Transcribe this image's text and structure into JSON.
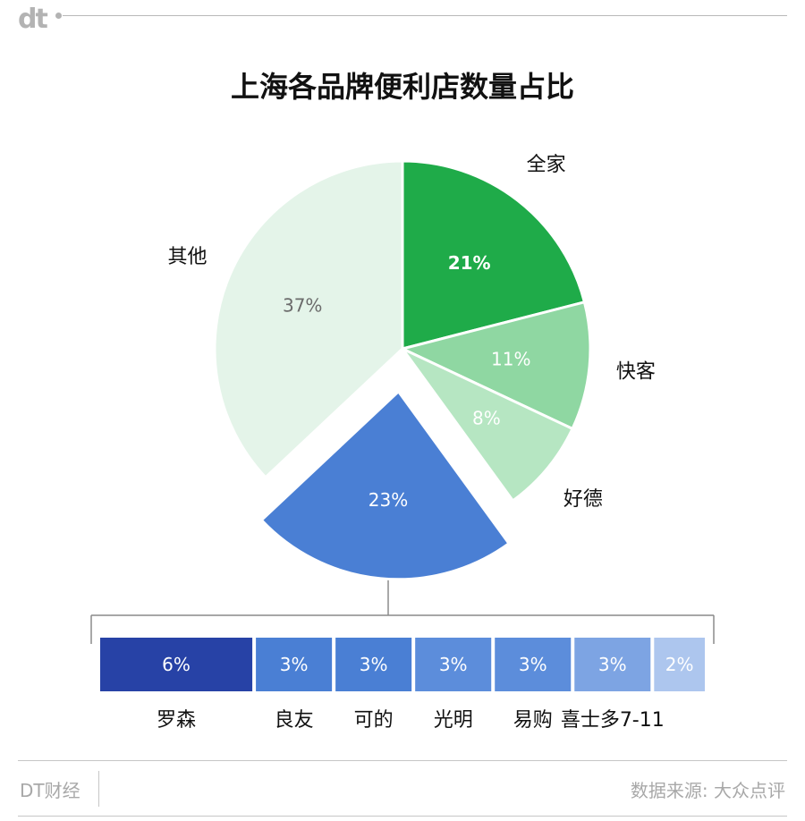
{
  "logo": "dt",
  "title": "上海各品牌便利店数量占比",
  "chart_data": {
    "type": "pie",
    "slices": [
      {
        "label": "全家",
        "value": 21,
        "display": "21%",
        "color": "#1fab49",
        "text_color": "#ffffff",
        "bold": true
      },
      {
        "label": "快客",
        "value": 11,
        "display": "11%",
        "color": "#8fd7a2",
        "text_color": "#ffffff",
        "bold": false
      },
      {
        "label": "好德",
        "value": 8,
        "display": "8%",
        "color": "#b6e6c2",
        "text_color": "#ffffff",
        "bold": false
      },
      {
        "label": "",
        "value": 23,
        "display": "23%",
        "color": "#4a7fd4",
        "text_color": "#ffffff",
        "bold": false,
        "exploded": true
      },
      {
        "label": "其他",
        "value": 37,
        "display": "37%",
        "color": "#e4f4e9",
        "text_color": "#6b6b6b",
        "bold": false
      }
    ],
    "breakdown": {
      "parent_display": "23%",
      "items": [
        {
          "label": "罗森",
          "value": 6,
          "display": "6%",
          "color": "#2742a6"
        },
        {
          "label": "良友",
          "value": 3,
          "display": "3%",
          "color": "#4a7fd4"
        },
        {
          "label": "可的",
          "value": 3,
          "display": "3%",
          "color": "#4a7fd4"
        },
        {
          "label": "光明",
          "value": 3,
          "display": "3%",
          "color": "#5c8ddb"
        },
        {
          "label": "易购",
          "value": 3,
          "display": "3%",
          "color": "#5c8ddb"
        },
        {
          "label": "喜士多7-11",
          "value": 3,
          "display": "3%",
          "color": "#7da4e3"
        },
        {
          "label": "",
          "value": 2,
          "display": "2%",
          "color": "#adc6ee"
        }
      ]
    }
  },
  "footer": {
    "brand": "DT财经",
    "source": "数据来源: 大众点评"
  }
}
